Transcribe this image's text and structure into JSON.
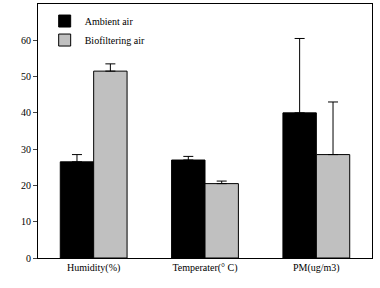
{
  "chart_data": {
    "type": "bar",
    "categories": [
      "Humidity(%)",
      "Temperater(° C)",
      "PM(ug/m3)"
    ],
    "series": [
      {
        "name": "Ambient air",
        "color": "#000000",
        "values": [
          26.5,
          27,
          40
        ],
        "error": [
          2,
          1,
          20.5
        ]
      },
      {
        "name": "Biofiltering air",
        "color": "#c0c0c0",
        "values": [
          51.5,
          20.5,
          28.5
        ],
        "error": [
          2,
          0.7,
          14.5
        ]
      }
    ],
    "ylim": [
      0,
      70
    ],
    "yticks": [
      0,
      10,
      20,
      30,
      40,
      50,
      60
    ],
    "grid": false,
    "legend": "upper left"
  }
}
